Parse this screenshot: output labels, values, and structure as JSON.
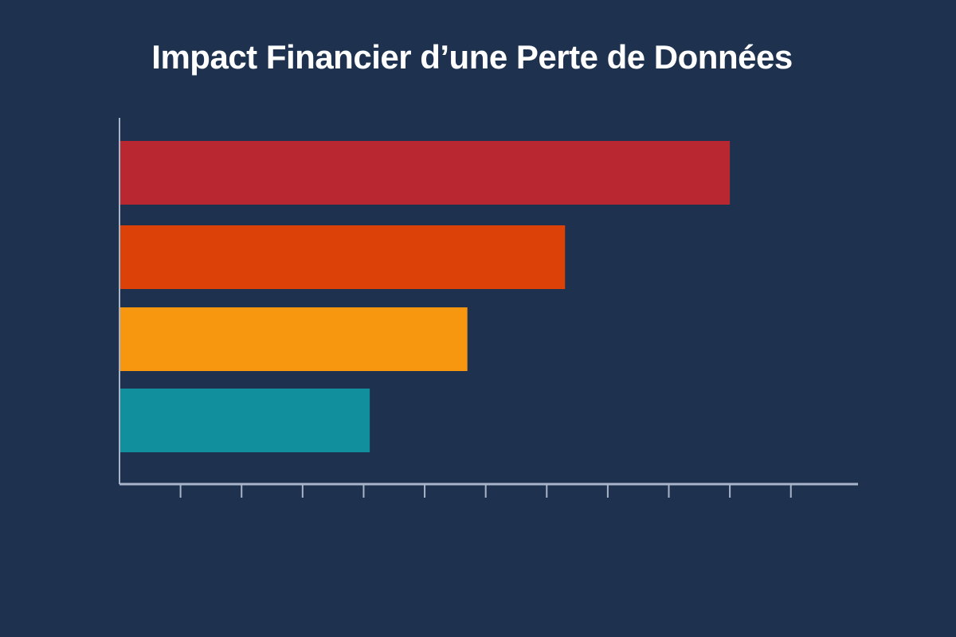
{
  "chart_data": {
    "type": "bar",
    "orientation": "horizontal",
    "title": "Impact Financier d’une Perte de Données",
    "xlabel": "",
    "ylabel": "",
    "categories": [
      "",
      "",
      "",
      ""
    ],
    "values": [
      10,
      7.3,
      5.7,
      4.1
    ],
    "colors": [
      "#b92830",
      "#dc4108",
      "#f7960f",
      "#128f9c"
    ],
    "xlim": [
      0,
      12.1
    ],
    "x_ticks": [
      1,
      2,
      3,
      4,
      5,
      6,
      7,
      8,
      9,
      10,
      11
    ],
    "tick_labels_shown": false,
    "grid": false,
    "legend": "none",
    "background": "#1e3250",
    "axis_color": "#a8b4c8"
  }
}
